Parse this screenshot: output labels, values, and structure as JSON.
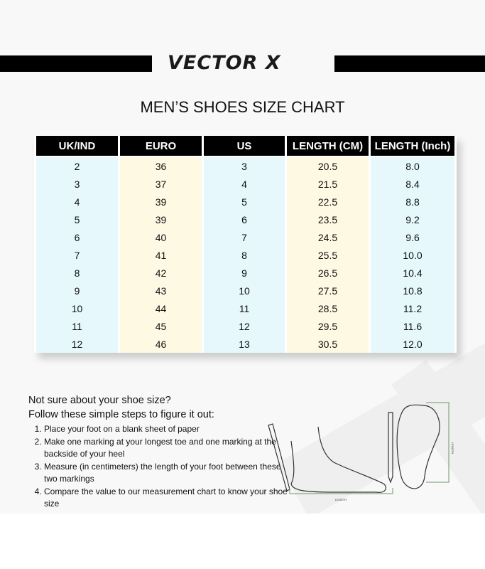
{
  "brand": {
    "logo_text": "VECTOR X"
  },
  "title": "MEN’S SHOES SIZE CHART",
  "table": {
    "headers": [
      "UK/IND",
      "EURO",
      "US",
      "LENGTH (CM)",
      "LENGTH (Inch)"
    ],
    "rows": [
      [
        "2",
        "36",
        "3",
        "20.5",
        "8.0"
      ],
      [
        "3",
        "37",
        "4",
        "21.5",
        "8.4"
      ],
      [
        "4",
        "39",
        "5",
        "22.5",
        "8.8"
      ],
      [
        "5",
        "39",
        "6",
        "23.5",
        "9.2"
      ],
      [
        "6",
        "40",
        "7",
        "24.5",
        "9.6"
      ],
      [
        "7",
        "41",
        "8",
        "25.5",
        "10.0"
      ],
      [
        "8",
        "42",
        "9",
        "26.5",
        "10.4"
      ],
      [
        "9",
        "43",
        "10",
        "27.5",
        "10.8"
      ],
      [
        "10",
        "44",
        "11",
        "28.5",
        "11.2"
      ],
      [
        "11",
        "45",
        "12",
        "29.5",
        "11.6"
      ],
      [
        "12",
        "46",
        "13",
        "30.5",
        "12.0"
      ]
    ]
  },
  "help": {
    "heading1": "Not sure about your shoe size?",
    "heading2": "Follow these simple steps to figure it out:",
    "steps": [
      "Place your foot on a blank sheet of paper",
      "Make one marking at your longest toe and one marking at the backside of your heel",
      "Measure (in centimeters) the length of your foot between these two markings",
      "Compare the value to our measurement chart to know your shoe size"
    ],
    "diagram_label_side": "LENGTH",
    "diagram_label_top": "LENGTH"
  },
  "colors": {
    "header_bg": "#000000",
    "col_cyan": "#e6f8fb",
    "col_yellow": "#fdf9e3"
  }
}
